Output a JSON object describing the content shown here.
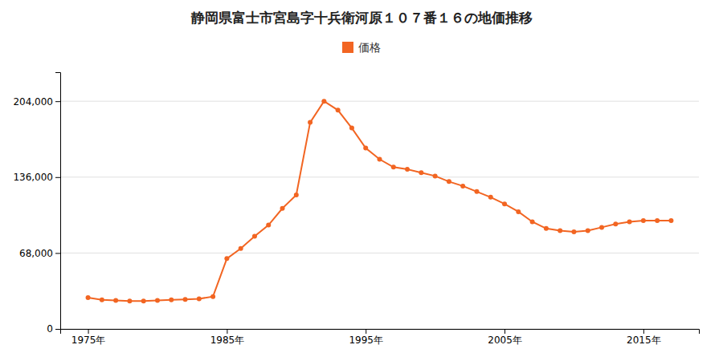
{
  "chart_data": {
    "type": "line",
    "title": "静岡県富士市宮島字十兵衛河原１０７番１６の地価推移",
    "x": [
      1975,
      1976,
      1977,
      1978,
      1979,
      1980,
      1981,
      1982,
      1983,
      1984,
      1985,
      1986,
      1987,
      1988,
      1989,
      1990,
      1991,
      1992,
      1993,
      1994,
      1995,
      1996,
      1997,
      1998,
      1999,
      2000,
      2001,
      2002,
      2003,
      2004,
      2005,
      2006,
      2007,
      2008,
      2009,
      2010,
      2011,
      2012,
      2013,
      2014,
      2015,
      2016,
      2017
    ],
    "series": [
      {
        "name": "価格",
        "color": "#F26522",
        "marker": "circle",
        "values": [
          28000,
          26000,
          25500,
          25000,
          25000,
          25500,
          26000,
          26500,
          27000,
          29000,
          63000,
          72000,
          83000,
          93000,
          108000,
          120000,
          185000,
          204000,
          196000,
          180000,
          162000,
          152000,
          145000,
          143000,
          140000,
          137000,
          132000,
          128000,
          123000,
          118000,
          112000,
          105000,
          96000,
          90000,
          88000,
          87000,
          88000,
          91000,
          94000,
          96000,
          97000,
          97000,
          97000
        ]
      }
    ],
    "xlim": [
      1973,
      2019
    ],
    "xticks": [
      {
        "value": 1975,
        "label": "1975年"
      },
      {
        "value": 1985,
        "label": "1985年"
      },
      {
        "value": 1995,
        "label": "1995年"
      },
      {
        "value": 2005,
        "label": "2005年"
      },
      {
        "value": 2015,
        "label": "2015年"
      }
    ],
    "ylim": [
      0,
      230000
    ],
    "yticks": [
      0,
      {
        "value": 68000,
        "label": "68,000"
      },
      {
        "value": 136000,
        "label": "136,000"
      },
      {
        "value": 204000,
        "label": "204,000"
      }
    ],
    "grid": true,
    "legend": "top"
  }
}
